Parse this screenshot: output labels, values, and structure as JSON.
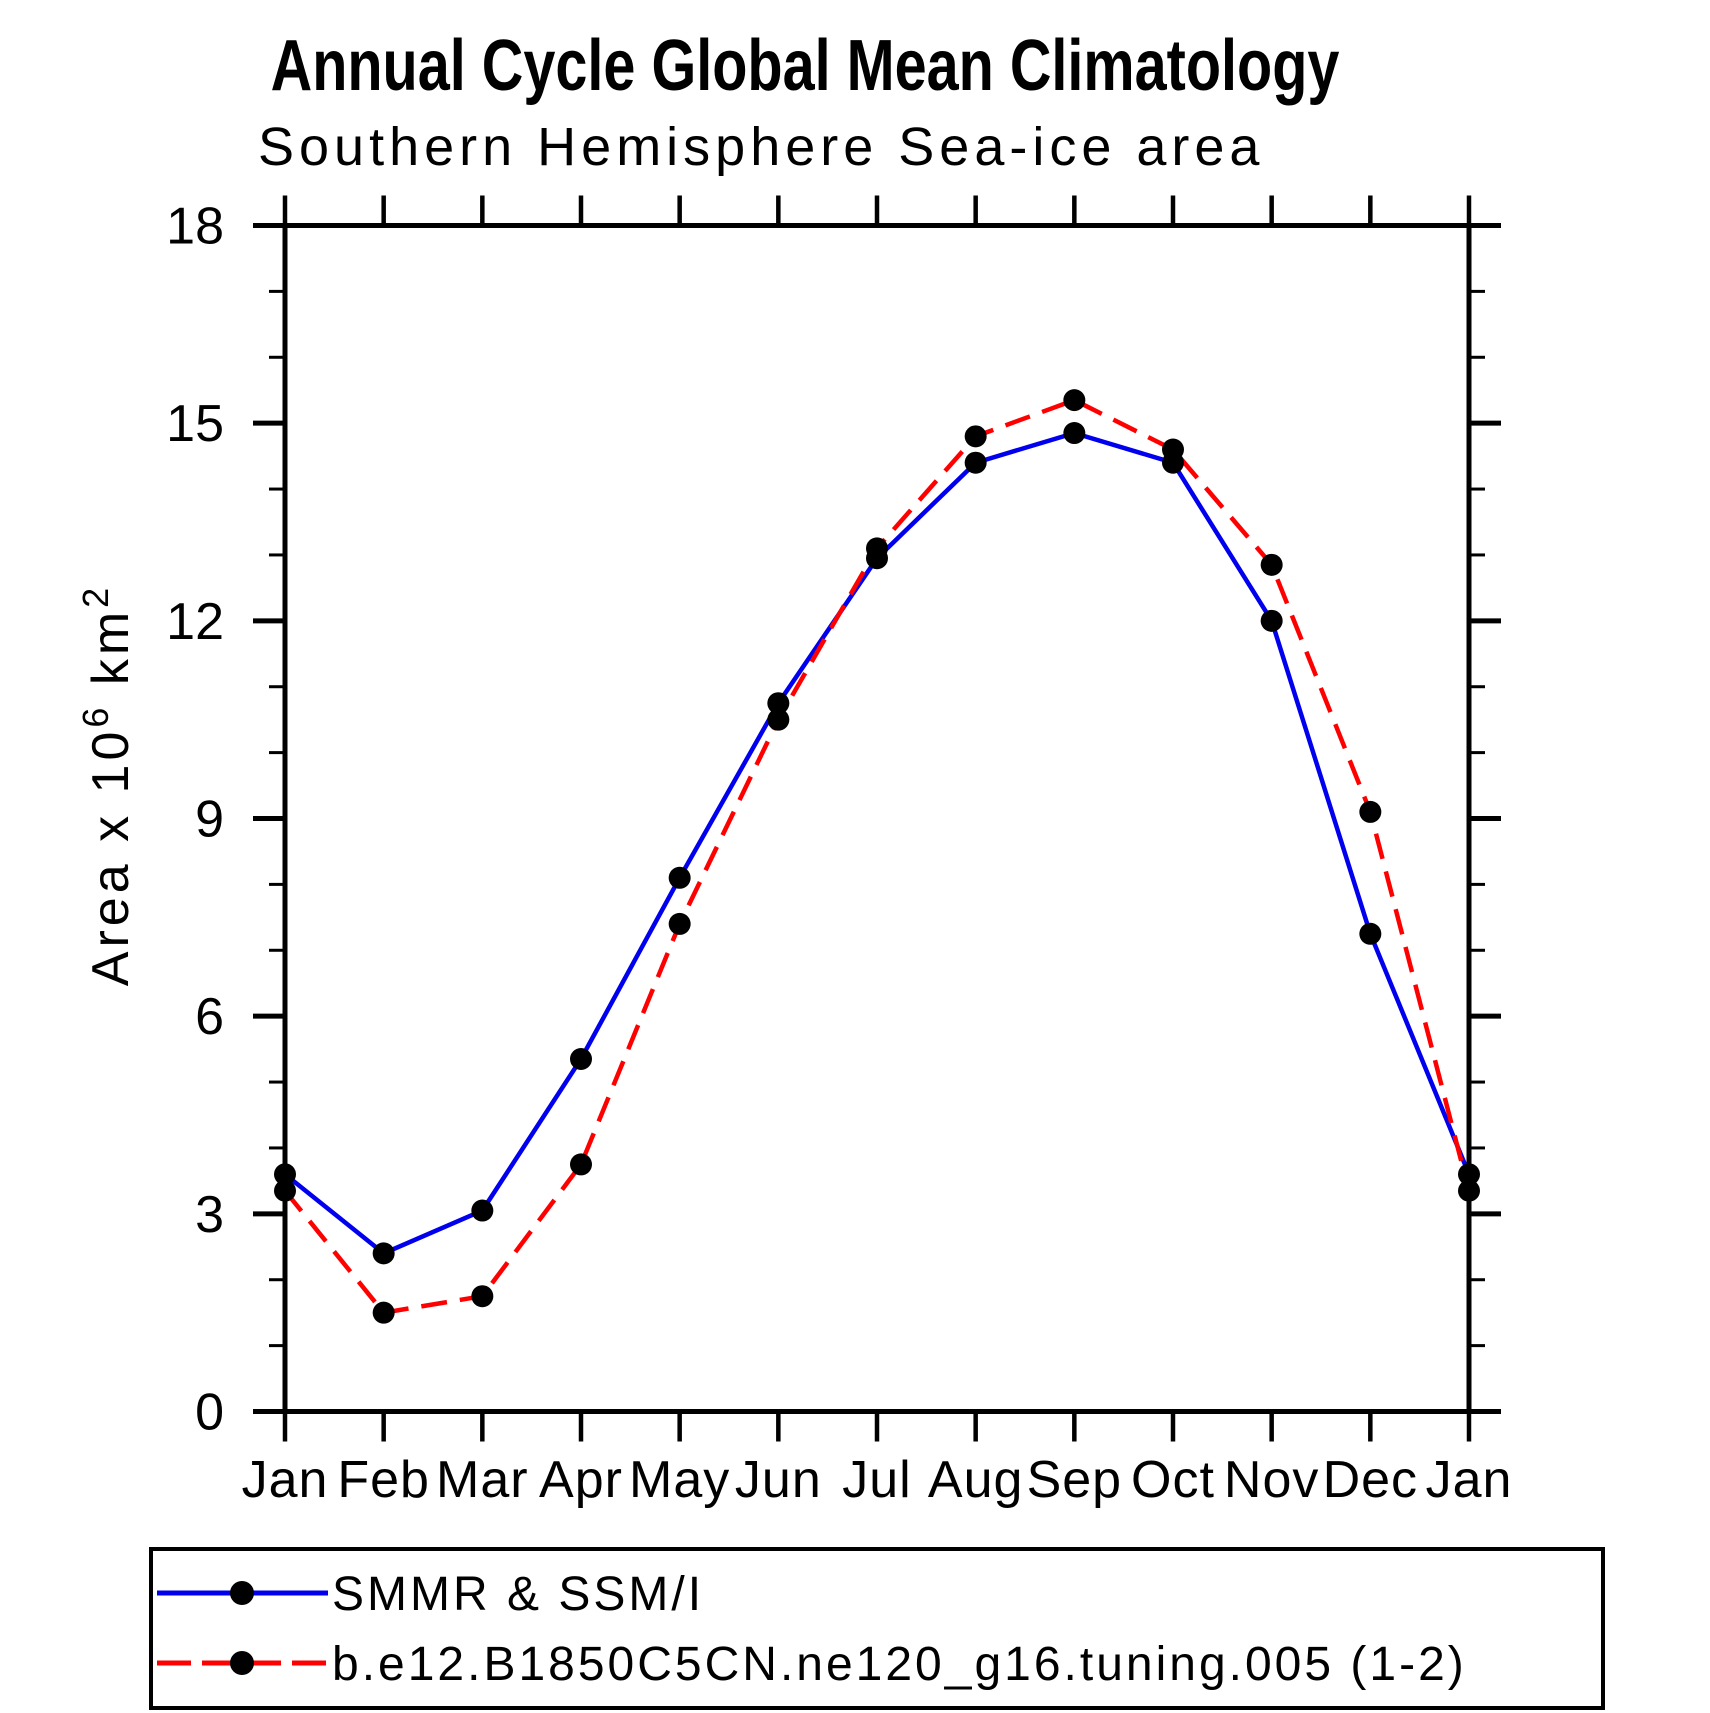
{
  "chart_data": {
    "type": "line",
    "title": "Annual Cycle Global Mean Climatology",
    "subtitle": "Southern Hemisphere Sea-ice area",
    "ylabel": "Area x 10^6 km^2",
    "ylabel_parts": {
      "prefix": "Area x 10",
      "exp1": "6",
      "mid": "  km",
      "exp2": "2"
    },
    "x_categories": [
      "Jan",
      "Feb",
      "Mar",
      "Apr",
      "May",
      "Jun",
      "Jul",
      "Aug",
      "Sep",
      "Oct",
      "Nov",
      "Dec",
      "Jan"
    ],
    "y_major_ticks": [
      0,
      3,
      6,
      9,
      12,
      15,
      18
    ],
    "y_minor_step": 1,
    "ylim": [
      0,
      18
    ],
    "grid": false,
    "legend_position": "bottom",
    "marker_color": "#000000",
    "series": [
      {
        "name": "SMMR & SSM/I",
        "color": "#0000ee",
        "style": "solid",
        "marker": "circle",
        "values": [
          3.6,
          2.4,
          3.05,
          5.35,
          8.1,
          10.75,
          12.95,
          14.4,
          14.85,
          14.4,
          12.0,
          7.25,
          3.6
        ]
      },
      {
        "name": "b.e12.B1850C5CN.ne120_g16.tuning.005 (1-2)",
        "color": "#ff0000",
        "style": "dashed",
        "marker": "circle",
        "values": [
          3.35,
          1.5,
          1.75,
          3.75,
          7.4,
          10.5,
          13.1,
          14.8,
          15.35,
          14.6,
          12.85,
          9.1,
          3.35
        ]
      }
    ]
  }
}
